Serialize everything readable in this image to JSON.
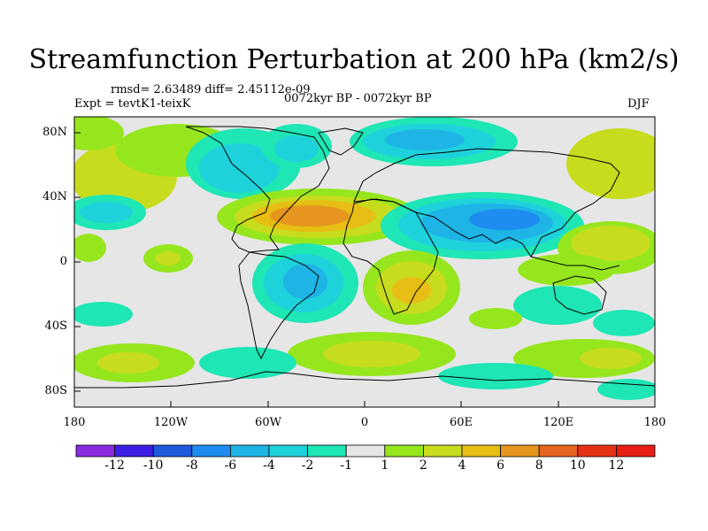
{
  "title": "Streamfunction Perturbation at 200 hPa (km2/s)",
  "stats": "rmsd= 2.63489 diff= 2.45112e-09",
  "experiment": "Expt = tevtK1-teixK",
  "period": "0072kyr BP - 0072kyr BP",
  "season": "DJF",
  "lat_labels": [
    "80N",
    "40N",
    "0",
    "40S",
    "80S"
  ],
  "lon_labels": [
    "180",
    "120W",
    "60W",
    "0",
    "60E",
    "120E",
    "180"
  ],
  "colorbar": {
    "labels": [
      "-12",
      "-10",
      "-8",
      "-6",
      "-4",
      "-2",
      "-1",
      "1",
      "2",
      "4",
      "6",
      "8",
      "10",
      "12"
    ],
    "colors": [
      "#8a2be2",
      "#3c1ee6",
      "#1e5adc",
      "#1e8cf0",
      "#1eb4e6",
      "#1ed2dc",
      "#1ee6b4",
      "#e6e6e6",
      "#96e61e",
      "#c8dc1e",
      "#e6be14",
      "#e6961e",
      "#e6641e",
      "#e63214",
      "#e61e14"
    ]
  }
}
